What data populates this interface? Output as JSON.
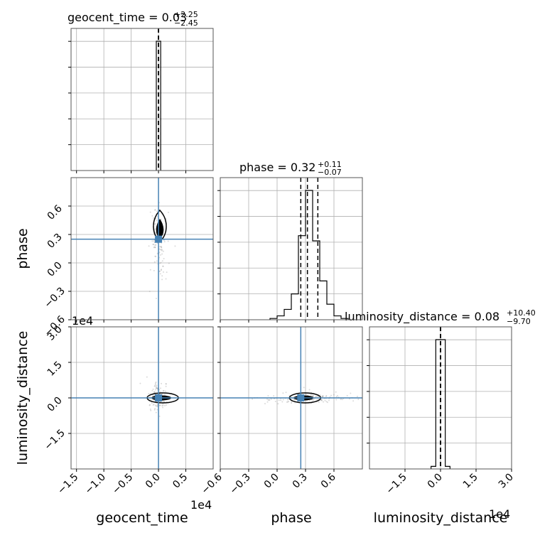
{
  "chart_data": {
    "type": "corner",
    "parameters": [
      "geocent_time",
      "phase",
      "luminosity_distance"
    ],
    "truth_color": "#4682b4",
    "truths": {
      "geocent_time": 0.0,
      "phase": 0.25,
      "luminosity_distance": 0.0
    },
    "titles": [
      {
        "param": "geocent_time",
        "name": "geocent_time",
        "median": "0.03",
        "plus": "+2.25",
        "minus": "−2.45"
      },
      {
        "param": "phase",
        "name": "phase",
        "median": "0.32",
        "plus": "+0.11",
        "minus": "−0.07"
      },
      {
        "param": "luminosity_distance",
        "name": "luminosity_distance",
        "median": "0.08",
        "plus": "+10.40",
        "minus": "−9.70"
      }
    ],
    "axis_labels": {
      "geocent_time": "geocent_time",
      "phase": "phase",
      "luminosity_distance": "luminosity_distance"
    },
    "offset_labels": {
      "geocent_time_x": "1e4",
      "luminosity_distance_x": "1e4",
      "luminosity_distance_y": "1e4"
    },
    "ranges": {
      "geocent_time": [
        -1.6,
        1.0
      ],
      "phase": [
        -0.6,
        0.9
      ],
      "luminosity_distance": [
        -3.0,
        3.0
      ]
    },
    "ticks": {
      "geocent_time": [
        "−1.5",
        "−1.0",
        "−0.5",
        "0.0",
        "0.5"
      ],
      "geocent_time_values": [
        -1.5,
        -1.0,
        -0.5,
        0.0,
        0.5
      ],
      "phase": [
        "−0.6",
        "−0.3",
        "0.0",
        "0.3",
        "0.6"
      ],
      "phase_values": [
        -0.6,
        -0.3,
        0.0,
        0.3,
        0.6
      ],
      "luminosity_distance_x": [
        "−1.5",
        "0.0",
        "1.5",
        "3.0"
      ],
      "luminosity_distance_x_values": [
        -1.5,
        0.0,
        1.5,
        3.0
      ],
      "luminosity_distance_y": [
        "−1.5",
        "0.0",
        "1.5",
        "3.0"
      ],
      "luminosity_distance_y_values": [
        -1.5,
        0.0,
        1.5,
        3.0
      ]
    },
    "quantile_lines": {
      "geocent_time": [
        0.0,
        0.0,
        0.0
      ],
      "phase": [
        0.25,
        0.32,
        0.43
      ],
      "luminosity_distance": [
        0.0,
        0.0,
        0.0
      ]
    },
    "histograms": {
      "geocent_time": {
        "bins": [
          -0.04,
          0.04
        ],
        "counts": [
          1.0
        ]
      },
      "phase": {
        "bins": [
          -0.075,
          0.0,
          0.075,
          0.15,
          0.225,
          0.3,
          0.375,
          0.45,
          0.525,
          0.6,
          0.675,
          0.75
        ],
        "counts": [
          0.01,
          0.03,
          0.08,
          0.2,
          0.65,
          1.0,
          0.61,
          0.3,
          0.12,
          0.03,
          0.01
        ]
      },
      "luminosity_distance": {
        "bins": [
          -0.4,
          -0.2,
          0.2,
          0.4
        ],
        "counts": [
          0.02,
          1.0,
          0.02
        ]
      }
    },
    "grid": true
  }
}
